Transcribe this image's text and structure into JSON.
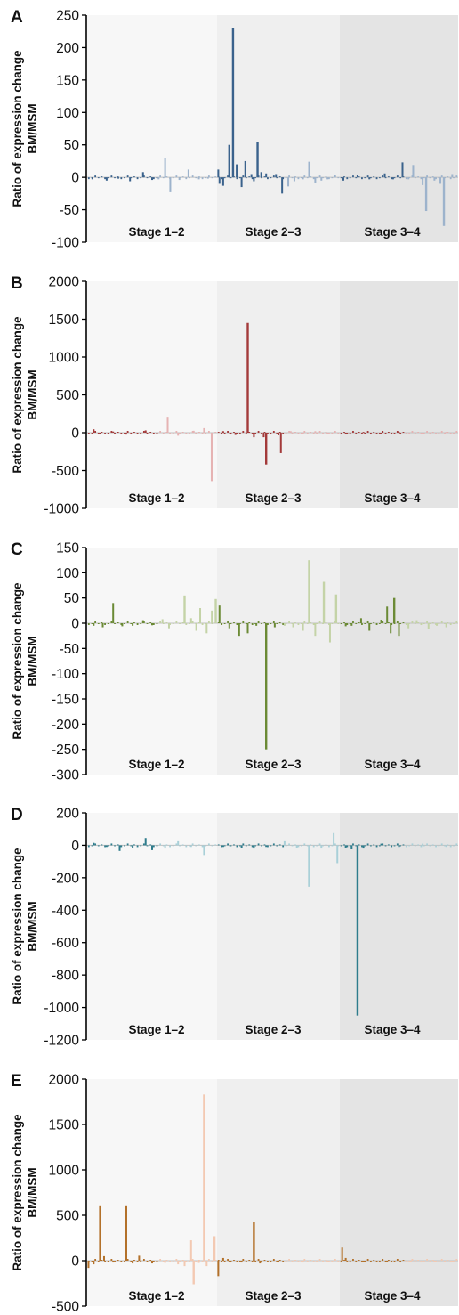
{
  "chart_data": [
    {
      "panel": "A",
      "type": "bar",
      "ylabel": [
        "Ratio of expression change",
        "BM/MSM"
      ],
      "yticks": [
        250,
        200,
        150,
        100,
        50,
        0,
        -50,
        -100
      ],
      "ylim": [
        -100,
        250
      ],
      "stages": [
        "Stage 1–2",
        "Stage 2–3",
        "Stage 3–4"
      ],
      "colors": [
        "#3a628c",
        "#9db3cc"
      ],
      "bars": [
        [
          [
            0.04,
            -3
          ],
          [
            0.15,
            -5
          ],
          [
            0.24,
            -2
          ],
          [
            0.33,
            -6
          ],
          [
            0.43,
            8
          ],
          [
            0.5,
            -4
          ],
          [
            0.55,
            -3
          ],
          [
            0.6,
            30
          ],
          [
            0.64,
            -23
          ],
          [
            0.71,
            -4
          ],
          [
            0.78,
            12
          ],
          [
            0.86,
            -3
          ],
          [
            0.93,
            -2
          ]
        ],
        [
          [
            0.01,
            12
          ],
          [
            0.02,
            -10
          ],
          [
            0.05,
            -13
          ],
          [
            0.1,
            50
          ],
          [
            0.13,
            230
          ],
          [
            0.16,
            20
          ],
          [
            0.2,
            -15
          ],
          [
            0.23,
            25
          ],
          [
            0.28,
            5
          ],
          [
            0.3,
            -6
          ],
          [
            0.33,
            55
          ],
          [
            0.36,
            8
          ],
          [
            0.4,
            6
          ],
          [
            0.48,
            5
          ],
          [
            0.53,
            -25
          ],
          [
            0.58,
            -14
          ],
          [
            0.63,
            -6
          ],
          [
            0.7,
            -3
          ],
          [
            0.75,
            24
          ],
          [
            0.8,
            -8
          ],
          [
            0.85,
            -5
          ],
          [
            0.9,
            -3
          ],
          [
            0.96,
            3
          ]
        ],
        [
          [
            0.03,
            -5
          ],
          [
            0.15,
            4
          ],
          [
            0.25,
            -3
          ],
          [
            0.38,
            6
          ],
          [
            0.45,
            -3
          ],
          [
            0.53,
            23
          ],
          [
            0.58,
            -3
          ],
          [
            0.62,
            19
          ],
          [
            0.7,
            -12
          ],
          [
            0.73,
            -52
          ],
          [
            0.8,
            -5
          ],
          [
            0.85,
            -10
          ],
          [
            0.88,
            -75
          ],
          [
            0.95,
            5
          ]
        ]
      ]
    },
    {
      "panel": "B",
      "type": "bar",
      "ylabel": [
        "Ratio of expression change",
        "BM/MSM"
      ],
      "yticks": [
        2000,
        1500,
        1000,
        500,
        0,
        -500,
        -1000
      ],
      "ylim": [
        -1000,
        2000
      ],
      "stages": [
        "Stage 1–2",
        "Stage 2–3",
        "Stage 3–4"
      ],
      "colors": [
        "#a33a3a",
        "#e6b3b3"
      ],
      "bars": [
        [
          [
            0.05,
            45
          ],
          [
            0.1,
            -20
          ],
          [
            0.2,
            15
          ],
          [
            0.3,
            -25
          ],
          [
            0.45,
            30
          ],
          [
            0.62,
            210
          ],
          [
            0.7,
            -40
          ],
          [
            0.82,
            25
          ],
          [
            0.9,
            60
          ],
          [
            0.96,
            -640
          ]
        ],
        [
          [
            0.05,
            20
          ],
          [
            0.15,
            -30
          ],
          [
            0.25,
            1450
          ],
          [
            0.3,
            -60
          ],
          [
            0.38,
            -60
          ],
          [
            0.4,
            -420
          ],
          [
            0.5,
            -35
          ],
          [
            0.52,
            -270
          ],
          [
            0.6,
            20
          ],
          [
            0.7,
            -15
          ],
          [
            0.8,
            20
          ],
          [
            0.9,
            -10
          ]
        ],
        [
          [
            0.05,
            -20
          ],
          [
            0.2,
            10
          ],
          [
            0.35,
            -15
          ],
          [
            0.5,
            10
          ],
          [
            0.7,
            -10
          ],
          [
            0.9,
            10
          ]
        ]
      ]
    },
    {
      "panel": "C",
      "type": "bar",
      "ylabel": [
        "Ratio of expression change",
        "BM/MSM"
      ],
      "yticks": [
        150,
        100,
        50,
        0,
        -50,
        -100,
        -150,
        -200,
        -250,
        -300
      ],
      "ylim": [
        -300,
        150
      ],
      "stages": [
        "Stage 1–2",
        "Stage 2–3",
        "Stage 3–4"
      ],
      "colors": [
        "#6b8a35",
        "#c4d3a7"
      ],
      "bars": [
        [
          [
            0.05,
            -5
          ],
          [
            0.12,
            -8
          ],
          [
            0.2,
            40
          ],
          [
            0.27,
            -6
          ],
          [
            0.35,
            -5
          ],
          [
            0.43,
            6
          ],
          [
            0.5,
            -4
          ],
          [
            0.58,
            8
          ],
          [
            0.63,
            -10
          ],
          [
            0.75,
            55
          ],
          [
            0.8,
            10
          ],
          [
            0.84,
            -15
          ],
          [
            0.87,
            30
          ],
          [
            0.92,
            -20
          ],
          [
            0.96,
            25
          ],
          [
            0.99,
            48
          ]
        ],
        [
          [
            0.02,
            35
          ],
          [
            0.1,
            -10
          ],
          [
            0.18,
            -25
          ],
          [
            0.25,
            -20
          ],
          [
            0.32,
            -5
          ],
          [
            0.4,
            -250
          ],
          [
            0.47,
            -8
          ],
          [
            0.55,
            -5
          ],
          [
            0.62,
            -8
          ],
          [
            0.7,
            -15
          ],
          [
            0.75,
            125
          ],
          [
            0.8,
            -25
          ],
          [
            0.87,
            82
          ],
          [
            0.92,
            -38
          ],
          [
            0.97,
            57
          ]
        ],
        [
          [
            0.05,
            -6
          ],
          [
            0.1,
            -5
          ],
          [
            0.18,
            10
          ],
          [
            0.25,
            -15
          ],
          [
            0.35,
            7
          ],
          [
            0.4,
            33
          ],
          [
            0.43,
            -20
          ],
          [
            0.46,
            50
          ],
          [
            0.5,
            -25
          ],
          [
            0.58,
            -10
          ],
          [
            0.65,
            6
          ],
          [
            0.75,
            -12
          ],
          [
            0.82,
            -5
          ],
          [
            0.9,
            -8
          ]
        ]
      ]
    },
    {
      "panel": "D",
      "type": "bar",
      "ylabel": [
        "Ratio of expression change",
        "BM/MSM"
      ],
      "yticks": [
        200,
        0,
        -200,
        -400,
        -600,
        -800,
        -1000,
        -1200
      ],
      "ylim": [
        -1200,
        200
      ],
      "stages": [
        "Stage 1–2",
        "Stage 2–3",
        "Stage 3–4"
      ],
      "colors": [
        "#2e7c8c",
        "#a9d0d8"
      ],
      "bars": [
        [
          [
            0.05,
            15
          ],
          [
            0.15,
            -10
          ],
          [
            0.25,
            -35
          ],
          [
            0.35,
            -15
          ],
          [
            0.45,
            45
          ],
          [
            0.5,
            -30
          ],
          [
            0.6,
            -20
          ],
          [
            0.7,
            25
          ],
          [
            0.8,
            -10
          ],
          [
            0.9,
            -60
          ]
        ],
        [
          [
            0.05,
            -10
          ],
          [
            0.2,
            -15
          ],
          [
            0.3,
            -20
          ],
          [
            0.4,
            -10
          ],
          [
            0.55,
            25
          ],
          [
            0.65,
            -15
          ],
          [
            0.75,
            -255
          ],
          [
            0.85,
            -20
          ],
          [
            0.95,
            75
          ],
          [
            0.98,
            -110
          ]
        ],
        [
          [
            0.05,
            -15
          ],
          [
            0.1,
            -25
          ],
          [
            0.15,
            -1050
          ],
          [
            0.2,
            -20
          ],
          [
            0.35,
            10
          ],
          [
            0.5,
            -10
          ],
          [
            0.7,
            10
          ],
          [
            0.9,
            -10
          ]
        ]
      ]
    },
    {
      "panel": "E",
      "type": "bar",
      "ylabel": [
        "Ratio of expression change",
        "BM/MSM"
      ],
      "yticks": [
        2000,
        1500,
        1000,
        500,
        0,
        -500
      ],
      "ylim": [
        -500,
        2000
      ],
      "stages": [
        "Stage 1–2",
        "Stage 2–3",
        "Stage 3–4"
      ],
      "colors": [
        "#b3712a",
        "#f3c9b2"
      ],
      "bars": [
        [
          [
            0.01,
            -80
          ],
          [
            0.05,
            -40
          ],
          [
            0.1,
            600
          ],
          [
            0.13,
            50
          ],
          [
            0.2,
            -20
          ],
          [
            0.3,
            600
          ],
          [
            0.35,
            -30
          ],
          [
            0.4,
            55
          ],
          [
            0.5,
            -30
          ],
          [
            0.6,
            -25
          ],
          [
            0.7,
            -40
          ],
          [
            0.75,
            -60
          ],
          [
            0.8,
            225
          ],
          [
            0.82,
            -260
          ],
          [
            0.86,
            -25
          ],
          [
            0.9,
            1830
          ],
          [
            0.92,
            -60
          ],
          [
            0.98,
            270
          ]
        ],
        [
          [
            0.01,
            -170
          ],
          [
            0.05,
            30
          ],
          [
            0.1,
            -15
          ],
          [
            0.2,
            -20
          ],
          [
            0.3,
            430
          ],
          [
            0.35,
            -30
          ],
          [
            0.5,
            -15
          ],
          [
            0.7,
            -20
          ],
          [
            0.9,
            -10
          ]
        ],
        [
          [
            0.02,
            145
          ],
          [
            0.05,
            30
          ],
          [
            0.2,
            -10
          ],
          [
            0.4,
            -15
          ],
          [
            0.6,
            -10
          ],
          [
            0.8,
            -15
          ],
          [
            0.95,
            -10
          ]
        ]
      ]
    }
  ]
}
